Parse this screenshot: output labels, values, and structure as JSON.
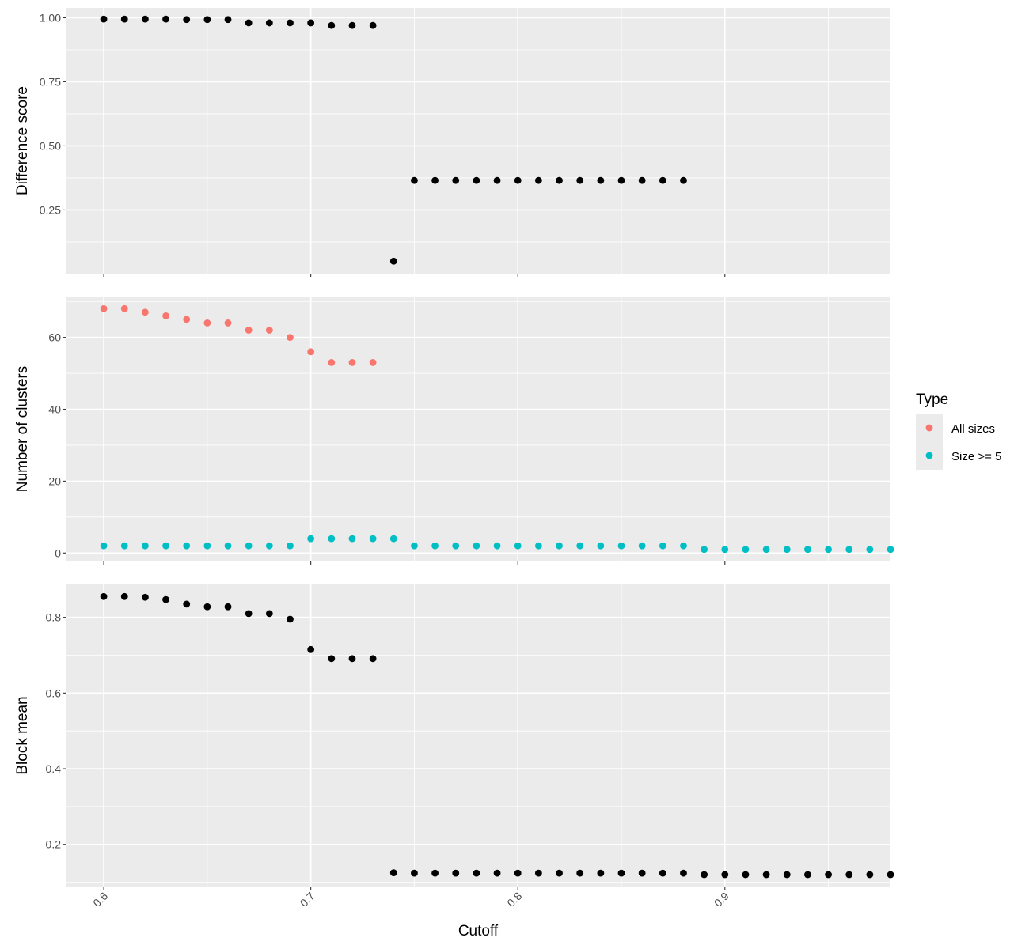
{
  "chart_data": {
    "type": "scatter",
    "xlabel": "Cutoff",
    "xlim": [
      0.582,
      0.9796
    ],
    "xticks": [
      0.6,
      0.7,
      0.8,
      0.9
    ],
    "xtick_labels": [
      "0.6",
      "0.7",
      "0.8",
      "0.9"
    ],
    "grid": true,
    "legend": {
      "title": "Type",
      "placement": "right",
      "entries": [
        {
          "label": "All sizes",
          "color": "#F8766D"
        },
        {
          "label": "Size >= 5",
          "color": "#00BFC4"
        }
      ]
    },
    "panels": [
      {
        "name": "difference-score",
        "ylabel": "Difference score",
        "ylim": [
          0.0013,
          1.0385
        ],
        "yticks": [
          0.25,
          0.5,
          0.75,
          1.0
        ],
        "ytick_labels": [
          "0.25",
          "0.50",
          "0.75",
          "1.00"
        ],
        "series": [
          {
            "color": "#000000",
            "x": [
              0.6,
              0.61,
              0.62,
              0.63,
              0.64,
              0.65,
              0.66,
              0.67,
              0.68,
              0.69,
              0.7,
              0.71,
              0.72,
              0.73,
              0.74,
              0.75,
              0.76,
              0.77,
              0.78,
              0.79,
              0.8,
              0.81,
              0.82,
              0.83,
              0.84,
              0.85,
              0.86,
              0.87,
              0.88
            ],
            "y": [
              0.995,
              0.995,
              0.995,
              0.995,
              0.993,
              0.993,
              0.993,
              0.98,
              0.98,
              0.98,
              0.98,
              0.97,
              0.97,
              0.97,
              0.05,
              0.365,
              0.365,
              0.365,
              0.365,
              0.365,
              0.365,
              0.365,
              0.365,
              0.365,
              0.365,
              0.365,
              0.365,
              0.365,
              0.365
            ]
          }
        ]
      },
      {
        "name": "number-of-clusters",
        "ylabel": "Number of clusters",
        "ylim": [
          -2.36,
          71.36
        ],
        "yticks": [
          0,
          20,
          40,
          60
        ],
        "ytick_labels": [
          "0",
          "20",
          "40",
          "60"
        ],
        "series": [
          {
            "name": "All sizes",
            "color": "#F8766D",
            "x": [
              0.6,
              0.61,
              0.62,
              0.63,
              0.64,
              0.65,
              0.66,
              0.67,
              0.68,
              0.69,
              0.7,
              0.71,
              0.72,
              0.73
            ],
            "y": [
              68,
              68,
              67,
              66,
              65,
              64,
              64,
              62,
              62,
              60,
              56,
              53,
              53,
              53
            ]
          },
          {
            "name": "Size >= 5",
            "color": "#00BFC4",
            "x": [
              0.6,
              0.61,
              0.62,
              0.63,
              0.64,
              0.65,
              0.66,
              0.67,
              0.68,
              0.69,
              0.7,
              0.71,
              0.72,
              0.73,
              0.74,
              0.75,
              0.76,
              0.77,
              0.78,
              0.79,
              0.8,
              0.81,
              0.82,
              0.83,
              0.84,
              0.85,
              0.86,
              0.87,
              0.88,
              0.89,
              0.9,
              0.91,
              0.92,
              0.93,
              0.94,
              0.95,
              0.96,
              0.97,
              0.98
            ],
            "y": [
              2,
              2,
              2,
              2,
              2,
              2,
              2,
              2,
              2,
              2,
              4,
              4,
              4,
              4,
              4,
              2,
              2,
              2,
              2,
              2,
              2,
              2,
              2,
              2,
              2,
              2,
              2,
              2,
              2,
              1,
              1,
              1,
              1,
              1,
              1,
              1,
              1,
              1,
              1
            ]
          }
        ]
      },
      {
        "name": "block-mean",
        "ylabel": "Block mean",
        "ylim": [
          0.0866,
          0.8891
        ],
        "yticks": [
          0.2,
          0.4,
          0.6,
          0.8
        ],
        "ytick_labels": [
          "0.2",
          "0.4",
          "0.6",
          "0.8"
        ],
        "series": [
          {
            "color": "#000000",
            "x": [
              0.6,
              0.61,
              0.62,
              0.63,
              0.64,
              0.65,
              0.66,
              0.67,
              0.68,
              0.69,
              0.7,
              0.71,
              0.72,
              0.73,
              0.74,
              0.75,
              0.76,
              0.77,
              0.78,
              0.79,
              0.8,
              0.81,
              0.82,
              0.83,
              0.84,
              0.85,
              0.86,
              0.87,
              0.88,
              0.89,
              0.9,
              0.91,
              0.92,
              0.93,
              0.94,
              0.95,
              0.96,
              0.97,
              0.98
            ],
            "y": [
              0.855,
              0.855,
              0.853,
              0.847,
              0.835,
              0.828,
              0.828,
              0.81,
              0.81,
              0.795,
              0.715,
              0.691,
              0.691,
              0.691,
              0.125,
              0.124,
              0.124,
              0.124,
              0.124,
              0.124,
              0.124,
              0.124,
              0.124,
              0.124,
              0.124,
              0.124,
              0.124,
              0.124,
              0.124,
              0.12,
              0.12,
              0.12,
              0.12,
              0.12,
              0.12,
              0.12,
              0.12,
              0.12,
              0.12
            ]
          }
        ]
      }
    ]
  }
}
